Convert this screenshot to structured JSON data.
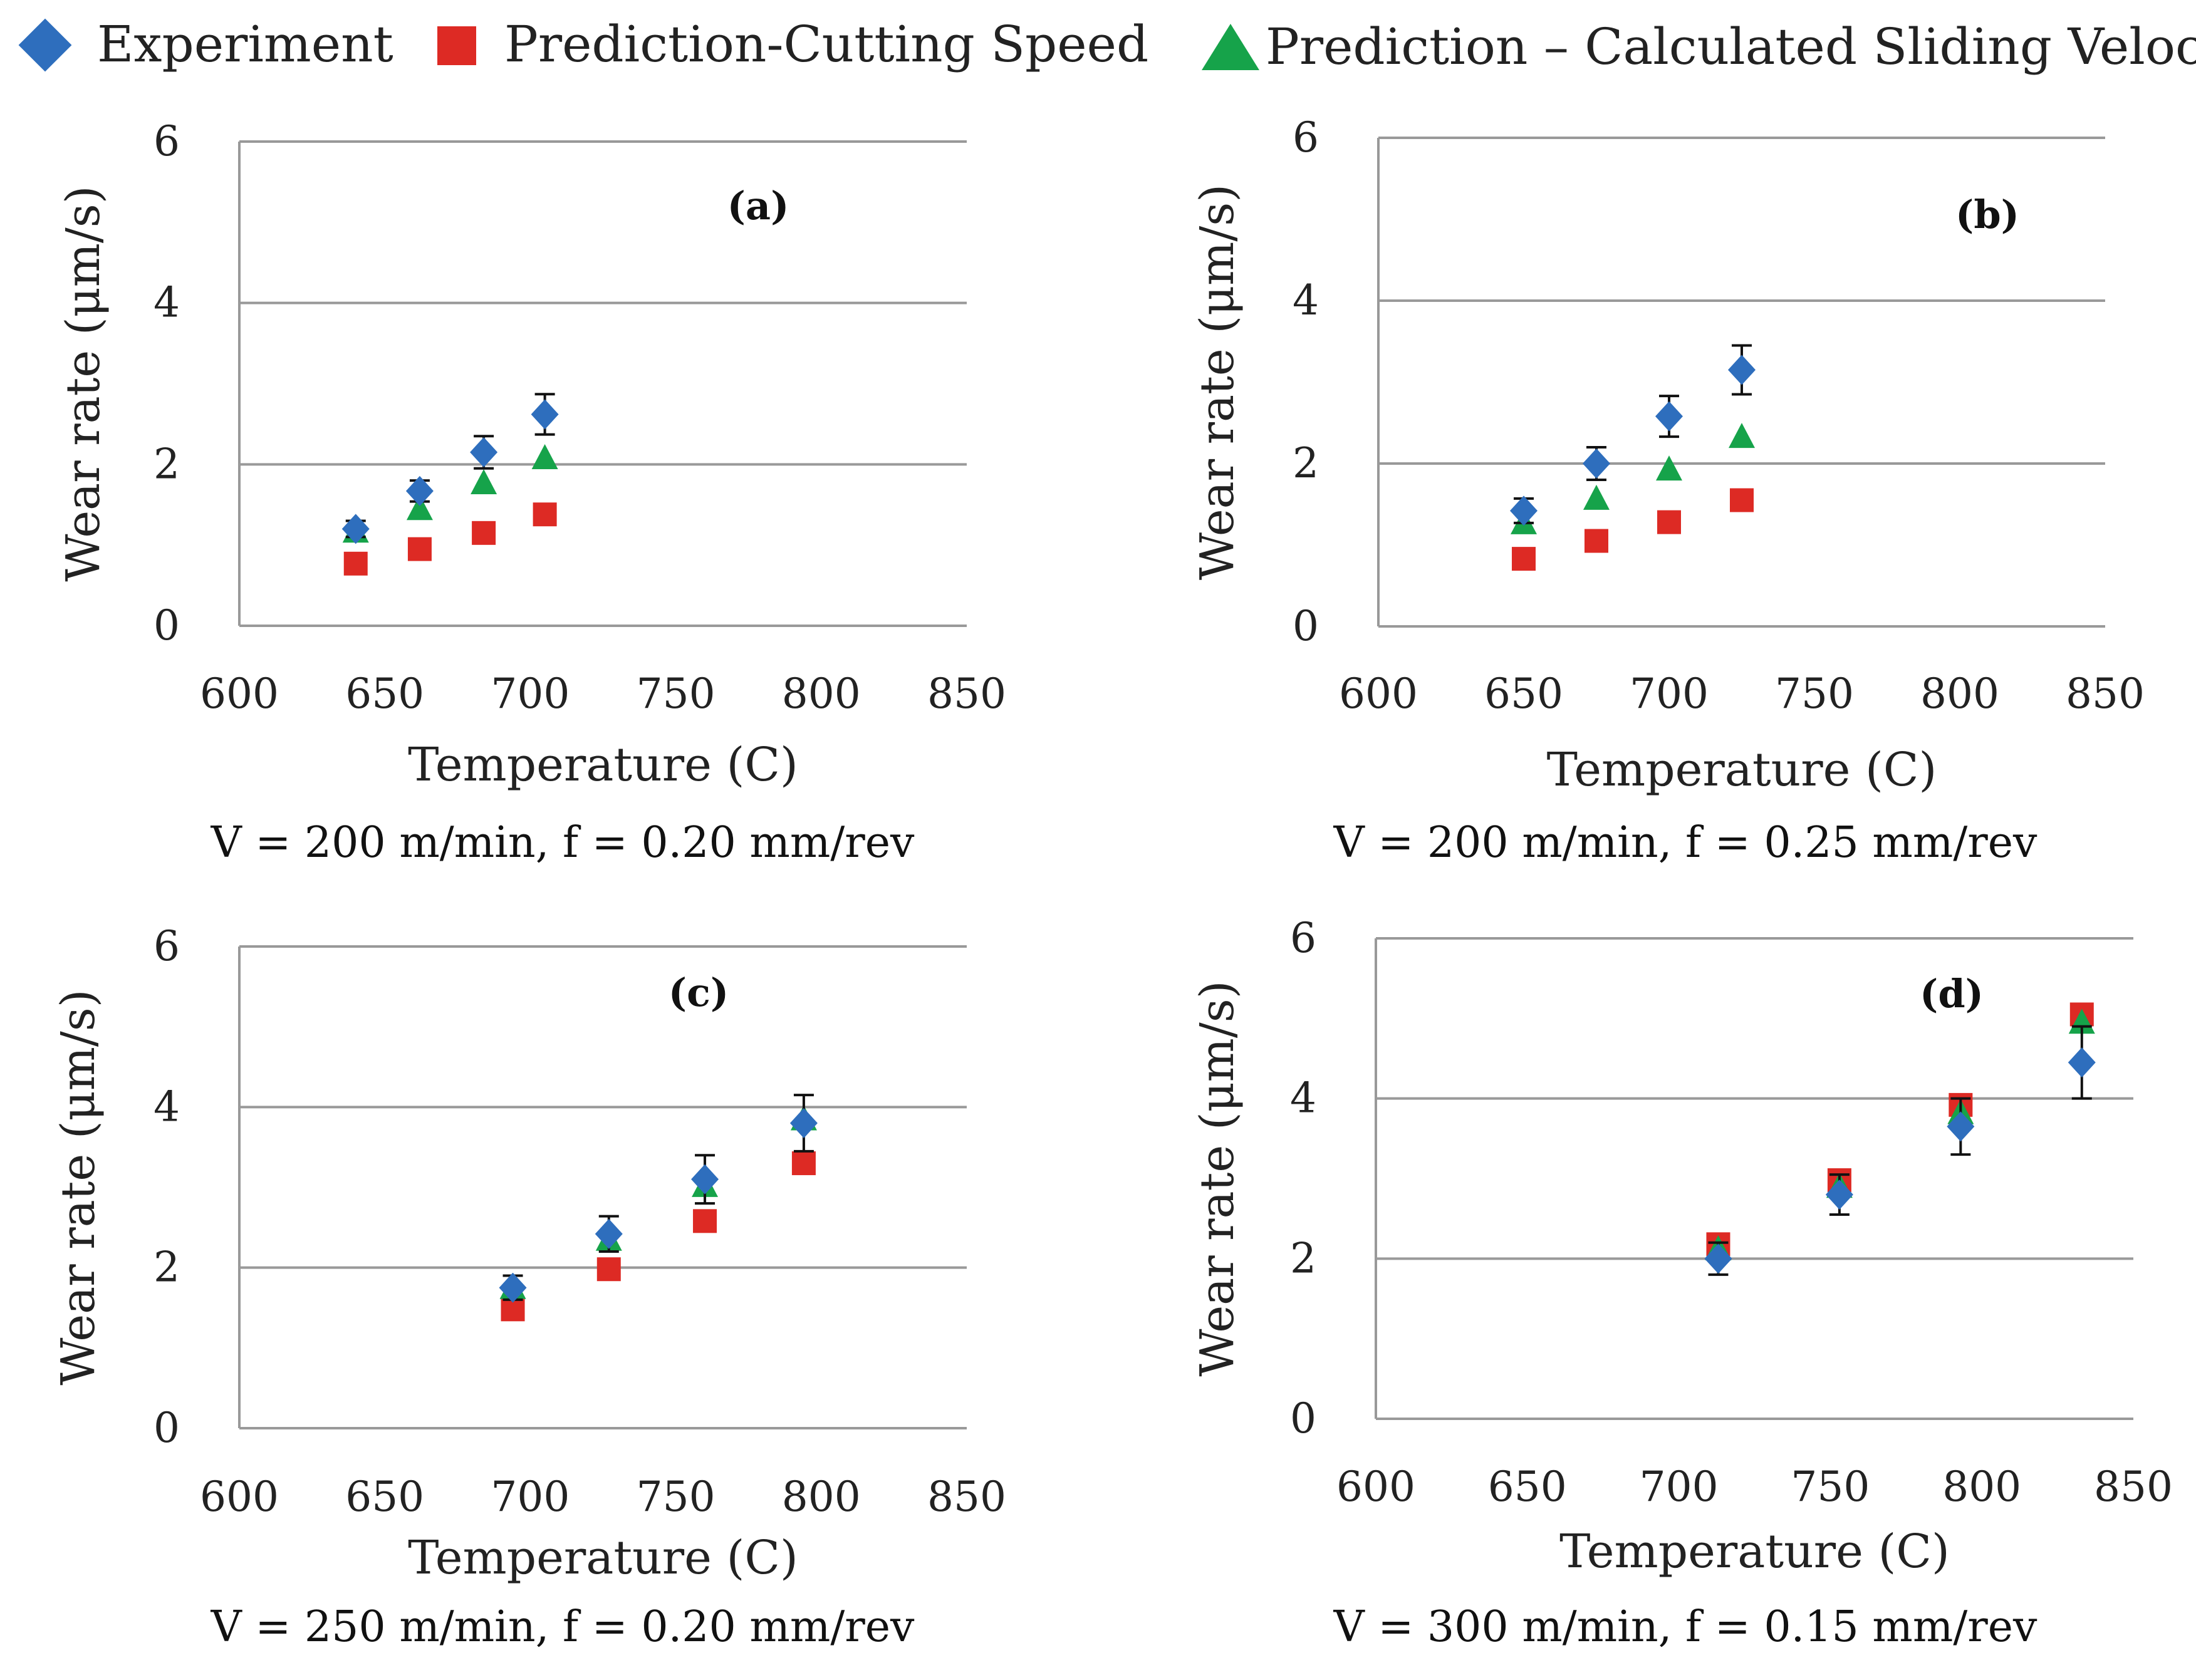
{
  "legend": {
    "experiment": "Experiment",
    "cutting": "Prediction-Cutting Speed",
    "sliding": "Prediction – Calculated Sliding Velocity"
  },
  "colors": {
    "experiment": "#2e6ebd",
    "cutting": "#dd2a24",
    "sliding": "#16a34a",
    "gridline": "#999999",
    "axis": "#999999",
    "errorbar": "#111111"
  },
  "markers": {
    "experiment": "diamond",
    "cutting": "square",
    "sliding": "triangle"
  },
  "chart_data": [
    {
      "type": "scatter",
      "panel_label": "(a)",
      "caption": "V = 200 m/min, f = 0.20 mm/rev",
      "xlabel": "Temperature (C)",
      "ylabel": "Wear rate (μm/s)",
      "xlim": [
        600,
        850
      ],
      "ylim": [
        0,
        6
      ],
      "xticks": [
        "600",
        "650",
        "700",
        "750",
        "800",
        "850"
      ],
      "yticks": [
        "0",
        "2",
        "4",
        "6"
      ],
      "grid": "horizontal",
      "series": [
        {
          "name": "Experiment",
          "x": [
            640,
            662,
            684,
            705
          ],
          "y": [
            1.2,
            1.67,
            2.15,
            2.62
          ],
          "err": [
            0.1,
            0.13,
            0.2,
            0.25
          ]
        },
        {
          "name": "Prediction-Cutting Speed",
          "x": [
            640,
            662,
            684,
            705
          ],
          "y": [
            0.77,
            0.95,
            1.15,
            1.38
          ]
        },
        {
          "name": "Prediction – Calculated Sliding Velocity",
          "x": [
            640,
            662,
            684,
            705
          ],
          "y": [
            1.17,
            1.45,
            1.77,
            2.08
          ]
        }
      ]
    },
    {
      "type": "scatter",
      "panel_label": "(b)",
      "caption": "V = 200 m/min, f = 0.25 mm/rev",
      "xlabel": "Temperature (C)",
      "ylabel": "Wear rate (μm/s)",
      "xlim": [
        600,
        850
      ],
      "ylim": [
        0,
        6
      ],
      "xticks": [
        "600",
        "650",
        "700",
        "750",
        "800",
        "850"
      ],
      "yticks": [
        "0",
        "2",
        "4",
        "6"
      ],
      "grid": "horizontal",
      "series": [
        {
          "name": "Experiment",
          "x": [
            650,
            675,
            700,
            725
          ],
          "y": [
            1.42,
            2.0,
            2.58,
            3.15
          ],
          "err": [
            0.15,
            0.2,
            0.25,
            0.3
          ]
        },
        {
          "name": "Prediction-Cutting Speed",
          "x": [
            650,
            675,
            700,
            725
          ],
          "y": [
            0.83,
            1.05,
            1.28,
            1.55
          ]
        },
        {
          "name": "Prediction – Calculated Sliding Velocity",
          "x": [
            650,
            675,
            700,
            725
          ],
          "y": [
            1.27,
            1.57,
            1.93,
            2.33
          ]
        }
      ]
    },
    {
      "type": "scatter",
      "panel_label": "(c)",
      "caption": "V = 250 m/min, f = 0.20 mm/rev",
      "xlabel": "Temperature (C)",
      "ylabel": "Wear rate (μm/s)",
      "xlim": [
        600,
        850
      ],
      "ylim": [
        0,
        6
      ],
      "xticks": [
        "600",
        "650",
        "700",
        "750",
        "800",
        "850"
      ],
      "yticks": [
        "0",
        "2",
        "4",
        "6"
      ],
      "grid": "horizontal",
      "series": [
        {
          "name": "Experiment",
          "x": [
            694,
            727,
            760,
            794
          ],
          "y": [
            1.75,
            2.42,
            3.1,
            3.8
          ],
          "err": [
            0.15,
            0.22,
            0.3,
            0.35
          ]
        },
        {
          "name": "Prediction-Cutting Speed",
          "x": [
            694,
            727,
            760,
            794
          ],
          "y": [
            1.48,
            1.98,
            2.58,
            3.3
          ]
        },
        {
          "name": "Prediction – Calculated Sliding Velocity",
          "x": [
            694,
            727,
            760,
            794
          ],
          "y": [
            1.75,
            2.35,
            3.02,
            3.85
          ]
        }
      ]
    },
    {
      "type": "scatter",
      "panel_label": "(d)",
      "caption": "V = 300 m/min, f = 0.15 mm/rev",
      "xlabel": "Temperature (C)",
      "ylabel": "Wear rate (μm/s)",
      "xlim": [
        600,
        850
      ],
      "ylim": [
        0,
        6
      ],
      "xticks": [
        "600",
        "650",
        "700",
        "750",
        "800",
        "850"
      ],
      "yticks": [
        "0",
        "2",
        "4",
        "6"
      ],
      "grid": "horizontal",
      "series": [
        {
          "name": "Experiment",
          "x": [
            713,
            753,
            793,
            833
          ],
          "y": [
            2.0,
            2.8,
            3.65,
            4.45
          ],
          "err": [
            0.2,
            0.25,
            0.35,
            0.45
          ]
        },
        {
          "name": "Prediction-Cutting Speed",
          "x": [
            713,
            753,
            793,
            833
          ],
          "y": [
            2.18,
            2.98,
            3.92,
            5.05
          ]
        },
        {
          "name": "Prediction – Calculated Sliding Velocity",
          "x": [
            713,
            753,
            793,
            833
          ],
          "y": [
            2.12,
            2.9,
            3.82,
            4.95
          ]
        }
      ]
    }
  ]
}
